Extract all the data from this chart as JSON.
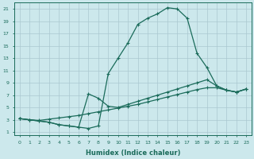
{
  "xlabel": "Humidex (Indice chaleur)",
  "ylabel": "",
  "bg_color": "#cce8ec",
  "grid_color": "#aac8d0",
  "line_color": "#1a6b5a",
  "xlim": [
    -0.5,
    23.5
  ],
  "ylim": [
    0.5,
    22
  ],
  "xticks": [
    0,
    1,
    2,
    3,
    4,
    5,
    6,
    7,
    8,
    9,
    10,
    11,
    12,
    13,
    14,
    15,
    16,
    17,
    18,
    19,
    20,
    21,
    22,
    23
  ],
  "yticks": [
    1,
    3,
    5,
    7,
    9,
    11,
    13,
    15,
    17,
    19,
    21
  ],
  "line1_x": [
    0,
    1,
    2,
    3,
    4,
    5,
    6,
    7,
    8,
    9,
    10,
    11,
    12,
    13,
    14,
    15,
    16,
    17,
    18,
    19,
    20,
    21,
    22,
    23
  ],
  "line1_y": [
    3.2,
    3.0,
    2.8,
    2.6,
    2.2,
    2.0,
    1.8,
    1.6,
    2.0,
    10.5,
    13.0,
    15.5,
    18.5,
    19.5,
    20.2,
    21.2,
    21.0,
    19.5,
    13.8,
    11.5,
    8.5,
    7.8,
    7.5,
    8.0
  ],
  "line2_x": [
    0,
    1,
    2,
    3,
    4,
    5,
    6,
    7,
    8,
    9,
    10,
    11,
    12,
    13,
    14,
    15,
    16,
    17,
    18,
    19,
    20,
    21,
    22,
    23
  ],
  "line2_y": [
    3.2,
    3.0,
    2.8,
    2.6,
    2.2,
    2.0,
    1.8,
    7.2,
    6.5,
    5.2,
    5.0,
    5.5,
    6.0,
    6.5,
    7.0,
    7.5,
    8.0,
    8.5,
    9.0,
    9.5,
    8.5,
    7.8,
    7.5,
    8.0
  ],
  "line3_x": [
    0,
    1,
    2,
    3,
    4,
    5,
    6,
    7,
    8,
    9,
    10,
    11,
    12,
    13,
    14,
    15,
    16,
    17,
    18,
    19,
    20,
    21,
    22,
    23
  ],
  "line3_y": [
    3.2,
    3.0,
    2.9,
    3.1,
    3.3,
    3.5,
    3.7,
    4.0,
    4.3,
    4.6,
    4.9,
    5.2,
    5.5,
    5.9,
    6.3,
    6.7,
    7.1,
    7.5,
    7.9,
    8.2,
    8.2,
    7.8,
    7.5,
    8.0
  ]
}
